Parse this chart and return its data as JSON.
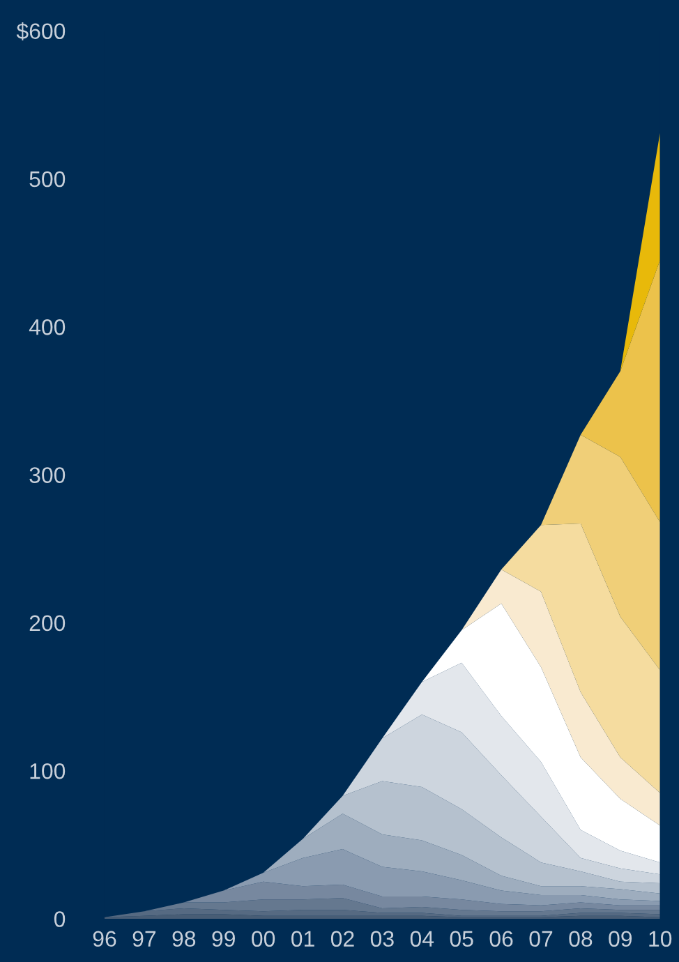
{
  "chart_data": {
    "type": "area",
    "stacked": true,
    "categories": [
      "96",
      "97",
      "98",
      "99",
      "00",
      "01",
      "02",
      "03",
      "04",
      "05",
      "06",
      "07",
      "08",
      "09",
      "10"
    ],
    "ylim": [
      0,
      600
    ],
    "yticks": [
      0,
      100,
      200,
      300,
      400,
      500,
      {
        "value": 600,
        "label": "$600"
      }
    ],
    "series": [
      {
        "color": "#485d75",
        "values": [
          1,
          2,
          3,
          3,
          2,
          2,
          2,
          2,
          2,
          1,
          1,
          1,
          2,
          2,
          1
        ]
      },
      {
        "color": "#566a82",
        "values": [
          0,
          3,
          4,
          3,
          3,
          4,
          4,
          2,
          2,
          1,
          1,
          1,
          2,
          2,
          2
        ]
      },
      {
        "color": "#65788f",
        "values": [
          0,
          0,
          4,
          5,
          8,
          7,
          8,
          3,
          4,
          4,
          3,
          3,
          3,
          2,
          3
        ]
      },
      {
        "color": "#77889f",
        "values": [
          0,
          0,
          0,
          8,
          12,
          9,
          9,
          8,
          7,
          7,
          5,
          4,
          4,
          3,
          3
        ]
      },
      {
        "color": "#8a9bb0",
        "values": [
          0,
          0,
          0,
          0,
          6,
          19,
          24,
          20,
          17,
          13,
          9,
          7,
          5,
          4,
          3
        ]
      },
      {
        "color": "#9eadbe",
        "values": [
          0,
          0,
          0,
          0,
          0,
          13,
          24,
          22,
          21,
          17,
          10,
          6,
          6,
          7,
          5
        ]
      },
      {
        "color": "#b5c1ce",
        "values": [
          0,
          0,
          0,
          0,
          0,
          0,
          12,
          36,
          36,
          31,
          26,
          16,
          10,
          5,
          7
        ]
      },
      {
        "color": "#cdd5de",
        "values": [
          0,
          0,
          0,
          0,
          0,
          0,
          0,
          29,
          49,
          52,
          42,
          31,
          9,
          9,
          6
        ]
      },
      {
        "color": "#e3e7ec",
        "values": [
          0,
          0,
          0,
          0,
          0,
          0,
          0,
          0,
          22,
          47,
          40,
          37,
          19,
          12,
          8
        ]
      },
      {
        "color": "#ffffff",
        "values": [
          0,
          0,
          0,
          0,
          0,
          0,
          0,
          0,
          0,
          22,
          76,
          64,
          49,
          35,
          25
        ]
      },
      {
        "color": "#f9ead0",
        "values": [
          0,
          0,
          0,
          0,
          0,
          0,
          0,
          0,
          0,
          0,
          23,
          51,
          44,
          28,
          22
        ]
      },
      {
        "color": "#f5dc9f",
        "values": [
          0,
          0,
          0,
          0,
          0,
          0,
          0,
          0,
          0,
          0,
          0,
          45,
          114,
          95,
          83
        ]
      },
      {
        "color": "#f0cf78",
        "values": [
          0,
          0,
          0,
          0,
          0,
          0,
          0,
          0,
          0,
          0,
          0,
          0,
          60,
          108,
          100
        ]
      },
      {
        "color": "#ecc24b",
        "values": [
          0,
          0,
          0,
          0,
          0,
          0,
          0,
          0,
          0,
          0,
          0,
          0,
          0,
          58,
          177
        ]
      },
      {
        "color": "#e8b90a",
        "values": [
          0,
          0,
          0,
          0,
          0,
          0,
          0,
          0,
          0,
          0,
          0,
          0,
          0,
          0,
          86
        ]
      }
    ]
  }
}
